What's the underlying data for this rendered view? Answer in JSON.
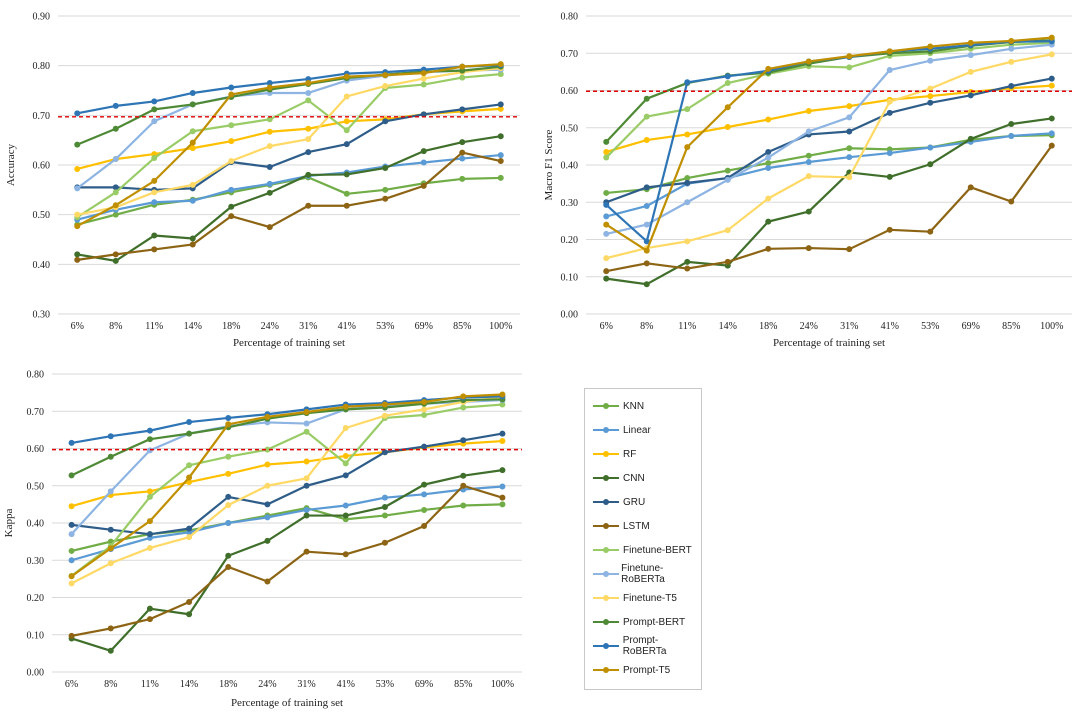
{
  "series_styles": [
    {
      "name": "KNN",
      "color": "#70ad47"
    },
    {
      "name": "Linear",
      "color": "#5b9bd5"
    },
    {
      "name": "RF",
      "color": "#ffc000"
    },
    {
      "name": "CNN",
      "color": "#3f6f2a"
    },
    {
      "name": "GRU",
      "color": "#2e5d8a"
    },
    {
      "name": "LSTM",
      "color": "#8c6414"
    },
    {
      "name": "Finetune-BERT",
      "color": "#99cc66"
    },
    {
      "name": "Finetune-RoBERTa",
      "color": "#8db4e2"
    },
    {
      "name": "Finetune-T5",
      "color": "#ffd966"
    },
    {
      "name": "Prompt-BERT",
      "color": "#4e8a35"
    },
    {
      "name": "Prompt-RoBERTa",
      "color": "#2e75b6"
    },
    {
      "name": "Prompt-T5",
      "color": "#bf8f00"
    }
  ],
  "threshold_color": "#e00000",
  "chart_data": [
    {
      "type": "line",
      "id": "accuracy",
      "title": "",
      "xlabel": "Percentage of training set",
      "ylabel": "Accuracy",
      "categories": [
        "6%",
        "8%",
        "11%",
        "14%",
        "18%",
        "24%",
        "31%",
        "41%",
        "53%",
        "69%",
        "85%",
        "100%"
      ],
      "ylim": [
        0.3,
        0.9
      ],
      "yticks": [
        0.3,
        0.4,
        0.5,
        0.6,
        0.7,
        0.8,
        0.9
      ],
      "ytick_labels": [
        "0.30",
        "0.40",
        "0.50",
        "0.60",
        "0.70",
        "0.80",
        "0.90"
      ],
      "threshold": 0.697,
      "series": [
        {
          "name": "KNN",
          "values": [
            0.48,
            0.5,
            0.52,
            0.53,
            0.545,
            0.56,
            0.575,
            0.542,
            0.55,
            0.563,
            0.572,
            0.574
          ]
        },
        {
          "name": "Linear",
          "values": [
            0.49,
            0.51,
            0.525,
            0.528,
            0.55,
            0.562,
            0.578,
            0.585,
            0.597,
            0.605,
            0.613,
            0.62
          ]
        },
        {
          "name": "RF",
          "values": [
            0.592,
            0.612,
            0.622,
            0.634,
            0.648,
            0.667,
            0.673,
            0.688,
            0.692,
            0.702,
            0.708,
            0.713
          ]
        },
        {
          "name": "CNN",
          "values": [
            0.42,
            0.407,
            0.458,
            0.452,
            0.516,
            0.544,
            0.58,
            0.581,
            0.594,
            0.628,
            0.646,
            0.658
          ]
        },
        {
          "name": "GRU",
          "values": [
            0.555,
            0.555,
            0.55,
            0.553,
            0.606,
            0.596,
            0.626,
            0.642,
            0.688,
            0.702,
            0.712,
            0.722
          ]
        },
        {
          "name": "LSTM",
          "values": [
            0.409,
            0.42,
            0.43,
            0.44,
            0.497,
            0.475,
            0.518,
            0.518,
            0.532,
            0.558,
            0.625,
            0.608
          ]
        },
        {
          "name": "Finetune-BERT",
          "values": [
            0.495,
            0.545,
            0.614,
            0.668,
            0.68,
            0.692,
            0.73,
            0.67,
            0.755,
            0.762,
            0.776,
            0.783
          ]
        },
        {
          "name": "Finetune-RoBERTa",
          "values": [
            0.553,
            0.612,
            0.688,
            0.722,
            0.738,
            0.745,
            0.745,
            0.77,
            0.78,
            0.787,
            0.79,
            0.792
          ]
        },
        {
          "name": "Finetune-T5",
          "values": [
            0.5,
            0.515,
            0.545,
            0.56,
            0.608,
            0.638,
            0.652,
            0.738,
            0.759,
            0.774,
            0.787,
            0.795
          ]
        },
        {
          "name": "Prompt-BERT",
          "values": [
            0.641,
            0.673,
            0.712,
            0.722,
            0.737,
            0.752,
            0.763,
            0.775,
            0.782,
            0.788,
            0.79,
            0.798
          ]
        },
        {
          "name": "Prompt-RoBERTa",
          "values": [
            0.704,
            0.719,
            0.728,
            0.745,
            0.756,
            0.765,
            0.773,
            0.784,
            0.787,
            0.792,
            0.798,
            0.801
          ]
        },
        {
          "name": "Prompt-T5",
          "values": [
            0.477,
            0.519,
            0.568,
            0.645,
            0.742,
            0.756,
            0.765,
            0.778,
            0.781,
            0.785,
            0.798,
            0.803
          ]
        }
      ]
    },
    {
      "type": "line",
      "id": "macro-f1",
      "title": "",
      "xlabel": "Percentage of training set",
      "ylabel": "Macro F1 Score",
      "categories": [
        "6%",
        "8%",
        "11%",
        "14%",
        "18%",
        "24%",
        "31%",
        "41%",
        "53%",
        "69%",
        "85%",
        "100%"
      ],
      "ylim": [
        0.0,
        0.8
      ],
      "yticks": [
        0.0,
        0.1,
        0.2,
        0.3,
        0.4,
        0.5,
        0.6,
        0.7,
        0.8
      ],
      "ytick_labels": [
        "0.00",
        "0.10",
        "0.20",
        "0.30",
        "0.40",
        "0.50",
        "0.60",
        "0.70",
        "0.80"
      ],
      "threshold": 0.598,
      "series": [
        {
          "name": "KNN",
          "values": [
            0.325,
            0.335,
            0.365,
            0.385,
            0.405,
            0.425,
            0.445,
            0.442,
            0.447,
            0.468,
            0.478,
            0.48
          ]
        },
        {
          "name": "Linear",
          "values": [
            0.262,
            0.29,
            0.35,
            0.365,
            0.392,
            0.408,
            0.421,
            0.432,
            0.447,
            0.462,
            0.478,
            0.485
          ]
        },
        {
          "name": "RF",
          "values": [
            0.435,
            0.467,
            0.482,
            0.502,
            0.522,
            0.545,
            0.558,
            0.575,
            0.585,
            0.596,
            0.606,
            0.613
          ]
        },
        {
          "name": "CNN",
          "values": [
            0.095,
            0.08,
            0.14,
            0.13,
            0.248,
            0.275,
            0.38,
            0.368,
            0.402,
            0.47,
            0.51,
            0.525
          ]
        },
        {
          "name": "GRU",
          "values": [
            0.3,
            0.34,
            0.352,
            0.365,
            0.435,
            0.482,
            0.49,
            0.54,
            0.567,
            0.587,
            0.612,
            0.632
          ]
        },
        {
          "name": "LSTM",
          "values": [
            0.115,
            0.136,
            0.122,
            0.14,
            0.175,
            0.177,
            0.174,
            0.226,
            0.221,
            0.34,
            0.302,
            0.452
          ]
        },
        {
          "name": "Finetune-BERT",
          "values": [
            0.42,
            0.53,
            0.55,
            0.62,
            0.645,
            0.665,
            0.662,
            0.693,
            0.7,
            0.712,
            0.723,
            0.728
          ]
        },
        {
          "name": "Finetune-RoBERTa",
          "values": [
            0.215,
            0.24,
            0.3,
            0.36,
            0.42,
            0.49,
            0.528,
            0.655,
            0.68,
            0.695,
            0.712,
            0.723
          ]
        },
        {
          "name": "Finetune-T5",
          "values": [
            0.15,
            0.177,
            0.195,
            0.225,
            0.31,
            0.37,
            0.367,
            0.57,
            0.605,
            0.65,
            0.677,
            0.697
          ]
        },
        {
          "name": "Prompt-BERT",
          "values": [
            0.462,
            0.578,
            0.62,
            0.64,
            0.648,
            0.672,
            0.69,
            0.7,
            0.705,
            0.72,
            0.73,
            0.735
          ]
        },
        {
          "name": "Prompt-RoBERTa",
          "values": [
            0.293,
            0.195,
            0.622,
            0.638,
            0.653,
            0.678,
            0.69,
            0.705,
            0.712,
            0.722,
            0.731,
            0.732
          ]
        },
        {
          "name": "Prompt-T5",
          "values": [
            0.24,
            0.17,
            0.448,
            0.555,
            0.658,
            0.678,
            0.692,
            0.705,
            0.718,
            0.728,
            0.733,
            0.742
          ]
        }
      ]
    },
    {
      "type": "line",
      "id": "kappa",
      "title": "",
      "xlabel": "Percentage of training set",
      "ylabel": "Kappa",
      "categories": [
        "6%",
        "8%",
        "11%",
        "14%",
        "18%",
        "24%",
        "31%",
        "41%",
        "53%",
        "69%",
        "85%",
        "100%"
      ],
      "ylim": [
        0.0,
        0.8
      ],
      "yticks": [
        0.0,
        0.1,
        0.2,
        0.3,
        0.4,
        0.5,
        0.6,
        0.7,
        0.8
      ],
      "ytick_labels": [
        "0.00",
        "0.10",
        "0.20",
        "0.30",
        "0.40",
        "0.50",
        "0.60",
        "0.70",
        "0.80"
      ],
      "threshold": 0.597,
      "series": [
        {
          "name": "KNN",
          "values": [
            0.325,
            0.35,
            0.37,
            0.38,
            0.4,
            0.42,
            0.44,
            0.41,
            0.42,
            0.435,
            0.447,
            0.45
          ]
        },
        {
          "name": "Linear",
          "values": [
            0.3,
            0.33,
            0.36,
            0.375,
            0.4,
            0.415,
            0.435,
            0.447,
            0.468,
            0.477,
            0.49,
            0.498
          ]
        },
        {
          "name": "RF",
          "values": [
            0.445,
            0.475,
            0.485,
            0.51,
            0.532,
            0.557,
            0.565,
            0.58,
            0.59,
            0.603,
            0.613,
            0.62
          ]
        },
        {
          "name": "CNN",
          "values": [
            0.09,
            0.057,
            0.17,
            0.155,
            0.312,
            0.352,
            0.42,
            0.42,
            0.443,
            0.503,
            0.527,
            0.542
          ]
        },
        {
          "name": "GRU",
          "values": [
            0.395,
            0.382,
            0.37,
            0.385,
            0.47,
            0.45,
            0.5,
            0.528,
            0.59,
            0.605,
            0.622,
            0.64
          ]
        },
        {
          "name": "LSTM",
          "values": [
            0.097,
            0.117,
            0.142,
            0.188,
            0.282,
            0.243,
            0.323,
            0.316,
            0.347,
            0.392,
            0.5,
            0.468
          ]
        },
        {
          "name": "Finetune-BERT",
          "values": [
            0.258,
            0.338,
            0.47,
            0.555,
            0.578,
            0.597,
            0.645,
            0.56,
            0.682,
            0.69,
            0.71,
            0.718
          ]
        },
        {
          "name": "Finetune-RoBERTa",
          "values": [
            0.37,
            0.485,
            0.595,
            0.64,
            0.66,
            0.67,
            0.667,
            0.705,
            0.715,
            0.72,
            0.725,
            0.73
          ]
        },
        {
          "name": "Finetune-T5",
          "values": [
            0.238,
            0.292,
            0.333,
            0.362,
            0.448,
            0.5,
            0.52,
            0.655,
            0.688,
            0.705,
            0.725,
            0.738
          ]
        },
        {
          "name": "Prompt-BERT",
          "values": [
            0.528,
            0.578,
            0.625,
            0.64,
            0.657,
            0.68,
            0.695,
            0.705,
            0.71,
            0.72,
            0.73,
            0.732
          ]
        },
        {
          "name": "Prompt-RoBERTa",
          "values": [
            0.615,
            0.633,
            0.648,
            0.671,
            0.682,
            0.692,
            0.705,
            0.718,
            0.722,
            0.73,
            0.737,
            0.74
          ]
        },
        {
          "name": "Prompt-T5",
          "values": [
            0.257,
            0.332,
            0.405,
            0.522,
            0.665,
            0.685,
            0.698,
            0.712,
            0.718,
            0.725,
            0.74,
            0.745
          ]
        }
      ]
    }
  ]
}
